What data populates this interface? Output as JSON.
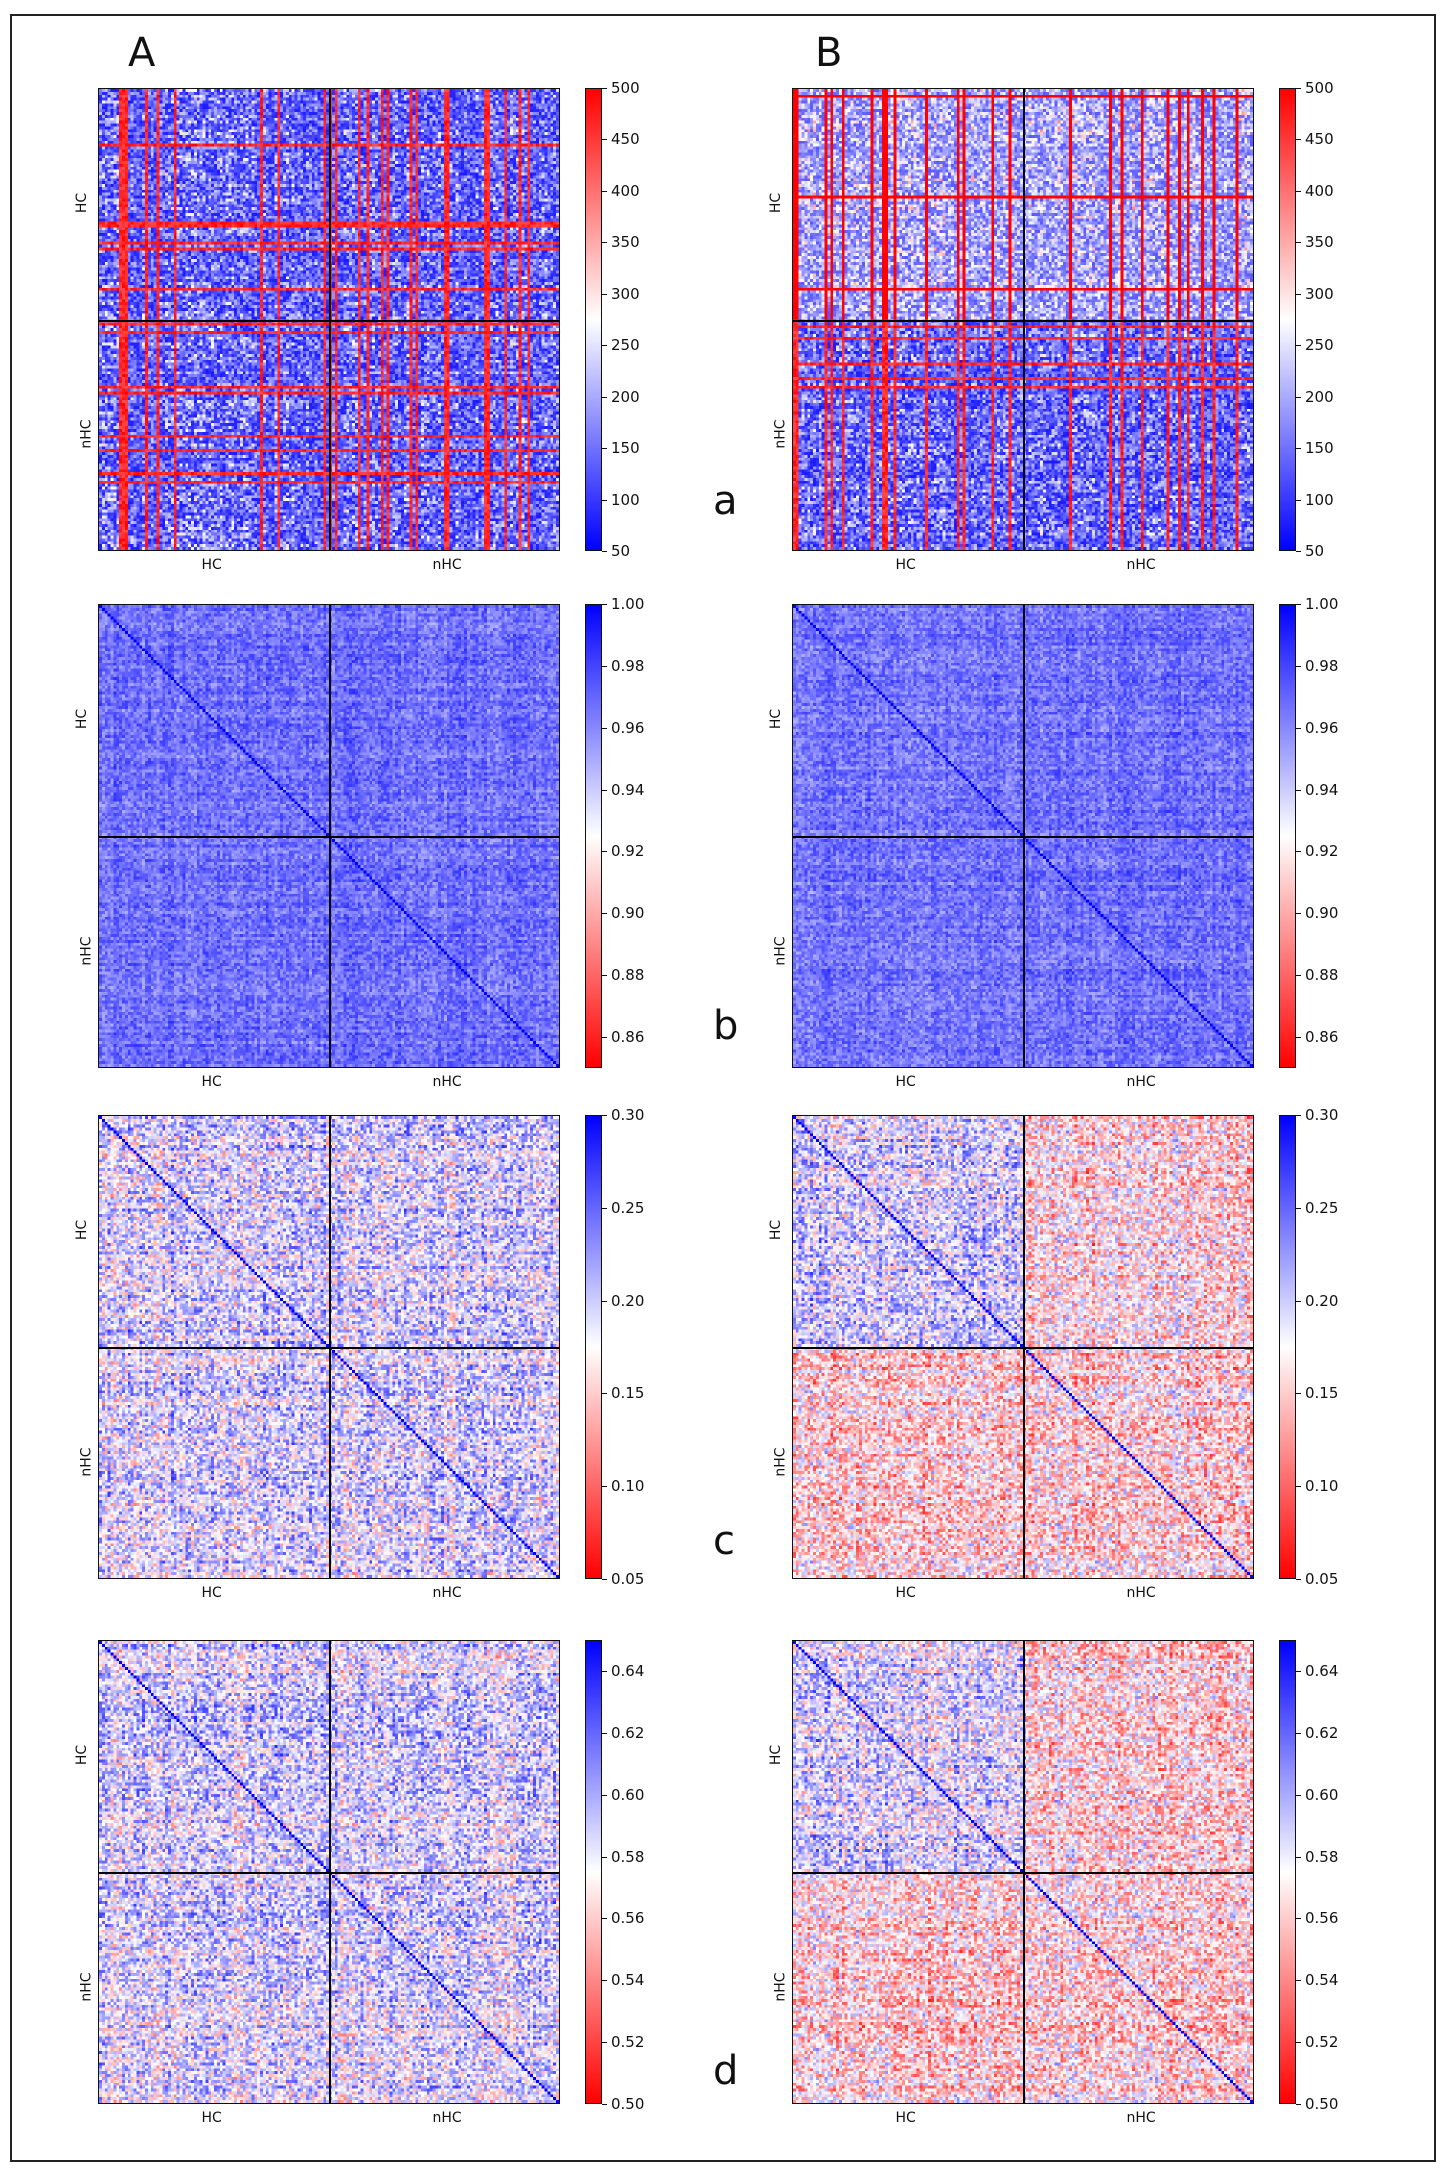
{
  "panel_letters": [
    "A",
    "B"
  ],
  "row_letters": [
    "a",
    "b",
    "c",
    "d"
  ],
  "chart_data": [
    {
      "type": "heatmap",
      "panel": "A",
      "row": "a",
      "x_groups": [
        "HC",
        "nHC"
      ],
      "y_groups": [
        "HC",
        "nHC"
      ],
      "colorbar": {
        "min": 50,
        "max": 500,
        "low_color": "#0000ff",
        "mid_color": "#ffffff",
        "high_color": "#ff0000",
        "ticks": [
          "50",
          "100",
          "150",
          "200",
          "250",
          "300",
          "350",
          "400",
          "450",
          "500"
        ]
      }
    },
    {
      "type": "heatmap",
      "panel": "B",
      "row": "a",
      "x_groups": [
        "HC",
        "nHC"
      ],
      "y_groups": [
        "HC",
        "nHC"
      ],
      "colorbar": {
        "min": 50,
        "max": 500,
        "low_color": "#0000ff",
        "mid_color": "#ffffff",
        "high_color": "#ff0000",
        "ticks": [
          "50",
          "100",
          "150",
          "200",
          "250",
          "300",
          "350",
          "400",
          "450",
          "500"
        ]
      }
    },
    {
      "type": "heatmap",
      "panel": "A",
      "row": "b",
      "x_groups": [
        "HC",
        "nHC"
      ],
      "y_groups": [
        "HC",
        "nHC"
      ],
      "colorbar": {
        "min": 0.85,
        "max": 1.0,
        "low_color": "#ff0000",
        "mid_color": "#ffffff",
        "high_color": "#0000ff",
        "ticks": [
          "0.86",
          "0.88",
          "0.90",
          "0.92",
          "0.94",
          "0.96",
          "0.98",
          "1.00"
        ]
      }
    },
    {
      "type": "heatmap",
      "panel": "B",
      "row": "b",
      "x_groups": [
        "HC",
        "nHC"
      ],
      "y_groups": [
        "HC",
        "nHC"
      ],
      "colorbar": {
        "min": 0.85,
        "max": 1.0,
        "low_color": "#ff0000",
        "mid_color": "#ffffff",
        "high_color": "#0000ff",
        "ticks": [
          "0.86",
          "0.88",
          "0.90",
          "0.92",
          "0.94",
          "0.96",
          "0.98",
          "1.00"
        ]
      }
    },
    {
      "type": "heatmap",
      "panel": "A",
      "row": "c",
      "x_groups": [
        "HC",
        "nHC"
      ],
      "y_groups": [
        "HC",
        "nHC"
      ],
      "colorbar": {
        "min": 0.05,
        "max": 0.3,
        "low_color": "#ff0000",
        "mid_color": "#ffffff",
        "high_color": "#0000ff",
        "ticks": [
          "0.05",
          "0.10",
          "0.15",
          "0.20",
          "0.25",
          "0.30"
        ]
      }
    },
    {
      "type": "heatmap",
      "panel": "B",
      "row": "c",
      "x_groups": [
        "HC",
        "nHC"
      ],
      "y_groups": [
        "HC",
        "nHC"
      ],
      "colorbar": {
        "min": 0.05,
        "max": 0.3,
        "low_color": "#ff0000",
        "mid_color": "#ffffff",
        "high_color": "#0000ff",
        "ticks": [
          "0.05",
          "0.10",
          "0.15",
          "0.20",
          "0.25",
          "0.30"
        ]
      }
    },
    {
      "type": "heatmap",
      "panel": "A",
      "row": "d",
      "x_groups": [
        "HC",
        "nHC"
      ],
      "y_groups": [
        "HC",
        "nHC"
      ],
      "colorbar": {
        "min": 0.5,
        "max": 0.65,
        "low_color": "#ff0000",
        "mid_color": "#ffffff",
        "high_color": "#0000ff",
        "ticks": [
          "0.50",
          "0.52",
          "0.54",
          "0.56",
          "0.58",
          "0.60",
          "0.62",
          "0.64"
        ]
      }
    },
    {
      "type": "heatmap",
      "panel": "B",
      "row": "d",
      "x_groups": [
        "HC",
        "nHC"
      ],
      "y_groups": [
        "HC",
        "nHC"
      ],
      "colorbar": {
        "min": 0.5,
        "max": 0.65,
        "low_color": "#ff0000",
        "mid_color": "#ffffff",
        "high_color": "#0000ff",
        "ticks": [
          "0.50",
          "0.52",
          "0.54",
          "0.56",
          "0.58",
          "0.60",
          "0.62",
          "0.64"
        ]
      }
    }
  ]
}
